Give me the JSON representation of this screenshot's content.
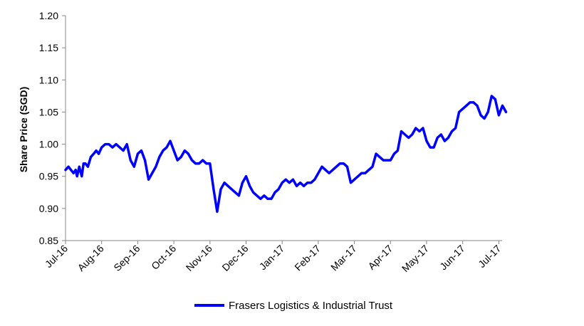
{
  "chart_data": {
    "type": "line",
    "title": "",
    "xlabel": "",
    "ylabel": "Share Price (SGD)",
    "ylim": [
      0.85,
      1.2
    ],
    "yticks": [
      0.85,
      0.9,
      0.95,
      1.0,
      1.05,
      1.1,
      1.15,
      1.2
    ],
    "ytick_labels": [
      "0.85",
      "0.90",
      "0.95",
      "1.00",
      "1.05",
      "1.10",
      "1.15",
      "1.20"
    ],
    "xticks": [
      "Jul-16",
      "Aug-16",
      "Sep-16",
      "Oct-16",
      "Nov-16",
      "Dec-16",
      "Jan-17",
      "Feb-17",
      "Mar-17",
      "Apr-17",
      "May-17",
      "Jun-17",
      "Jul-17"
    ],
    "grid": false,
    "legend_position": "bottom",
    "line_color": "#0000ff",
    "series": [
      {
        "name": "Frasers Logistics & Industrial Trust",
        "x": [
          0,
          0.08,
          0.15,
          0.22,
          0.28,
          0.32,
          0.38,
          0.45,
          0.5,
          0.55,
          0.62,
          0.7,
          0.78,
          0.85,
          0.92,
          1.0,
          1.1,
          1.2,
          1.3,
          1.4,
          1.5,
          1.6,
          1.7,
          1.8,
          1.9,
          2.0,
          2.1,
          2.2,
          2.3,
          2.4,
          2.5,
          2.6,
          2.7,
          2.8,
          2.9,
          3.0,
          3.1,
          3.2,
          3.3,
          3.4,
          3.5,
          3.6,
          3.7,
          3.8,
          3.9,
          4.0,
          4.1,
          4.2,
          4.3,
          4.4,
          4.5,
          4.6,
          4.7,
          4.8,
          4.9,
          5.0,
          5.1,
          5.2,
          5.3,
          5.4,
          5.5,
          5.6,
          5.7,
          5.8,
          5.9,
          6.0,
          6.1,
          6.2,
          6.3,
          6.4,
          6.5,
          6.6,
          6.7,
          6.8,
          6.9,
          7.0,
          7.1,
          7.2,
          7.3,
          7.4,
          7.5,
          7.6,
          7.7,
          7.8,
          7.9,
          8.0,
          8.1,
          8.2,
          8.3,
          8.4,
          8.5,
          8.6,
          8.7,
          8.8,
          8.9,
          9.0,
          9.1,
          9.2,
          9.3,
          9.4,
          9.5,
          9.6,
          9.7,
          9.8,
          9.9,
          10.0,
          10.1,
          10.2,
          10.3,
          10.4,
          10.5,
          10.6,
          10.7,
          10.8,
          10.9,
          11.0,
          11.1,
          11.2,
          11.3,
          11.4,
          11.5,
          11.6,
          11.7,
          11.8,
          11.9,
          12.0,
          12.1,
          12.2
        ],
        "values": [
          0.96,
          0.965,
          0.96,
          0.955,
          0.96,
          0.95,
          0.965,
          0.95,
          0.97,
          0.97,
          0.965,
          0.98,
          0.985,
          0.99,
          0.985,
          0.995,
          1.0,
          1.0,
          0.995,
          1.0,
          0.995,
          0.99,
          1.0,
          0.975,
          0.965,
          0.985,
          0.99,
          0.975,
          0.945,
          0.955,
          0.965,
          0.98,
          0.99,
          0.995,
          1.005,
          0.99,
          0.975,
          0.98,
          0.99,
          0.985,
          0.975,
          0.97,
          0.97,
          0.975,
          0.97,
          0.97,
          0.93,
          0.895,
          0.93,
          0.94,
          0.935,
          0.93,
          0.925,
          0.92,
          0.94,
          0.95,
          0.935,
          0.925,
          0.92,
          0.915,
          0.92,
          0.915,
          0.915,
          0.925,
          0.93,
          0.94,
          0.945,
          0.94,
          0.945,
          0.935,
          0.94,
          0.935,
          0.94,
          0.94,
          0.945,
          0.955,
          0.965,
          0.96,
          0.955,
          0.96,
          0.965,
          0.97,
          0.97,
          0.965,
          0.94,
          0.945,
          0.95,
          0.955,
          0.955,
          0.96,
          0.965,
          0.985,
          0.98,
          0.975,
          0.975,
          0.975,
          0.985,
          0.99,
          1.02,
          1.015,
          1.01,
          1.015,
          1.025,
          1.02,
          1.025,
          1.005,
          0.995,
          0.995,
          1.01,
          1.015,
          1.005,
          1.01,
          1.02,
          1.025,
          1.05,
          1.055,
          1.06,
          1.065,
          1.065,
          1.06,
          1.045,
          1.04,
          1.05,
          1.075,
          1.07,
          1.045,
          1.06,
          1.05
        ]
      }
    ]
  }
}
